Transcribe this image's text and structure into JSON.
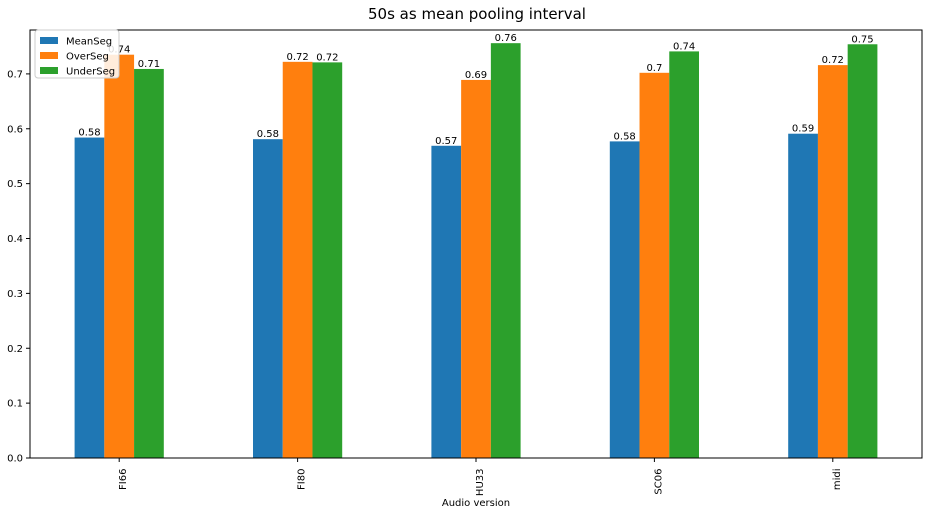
{
  "chart_data": {
    "type": "bar",
    "title": "50s as mean pooling interval",
    "xlabel": "Audio version",
    "ylabel": "",
    "categories": [
      "FI66",
      "FI80",
      "HU33",
      "SC06",
      "midi"
    ],
    "series": [
      {
        "name": "MeanSeg",
        "color": "#1f77b4",
        "values": [
          0.584,
          0.581,
          0.569,
          0.577,
          0.591
        ],
        "labels": [
          "0.58",
          "0.58",
          "0.57",
          "0.58",
          "0.59"
        ]
      },
      {
        "name": "OverSeg",
        "color": "#ff7f0e",
        "values": [
          0.735,
          0.722,
          0.689,
          0.702,
          0.716
        ],
        "labels": [
          "0.74",
          "0.72",
          "0.69",
          "0.7",
          "0.72"
        ]
      },
      {
        "name": "UnderSeg",
        "color": "#2ca02c",
        "values": [
          0.709,
          0.721,
          0.756,
          0.741,
          0.754
        ],
        "labels": [
          "0.71",
          "0.72",
          "0.76",
          "0.74",
          "0.75"
        ]
      }
    ],
    "ylim": [
      0,
      0.78
    ],
    "yticks": [
      "0.0",
      "0.1",
      "0.2",
      "0.3",
      "0.4",
      "0.5",
      "0.6",
      "0.7"
    ],
    "legend_position": "top-left",
    "grid": false
  }
}
